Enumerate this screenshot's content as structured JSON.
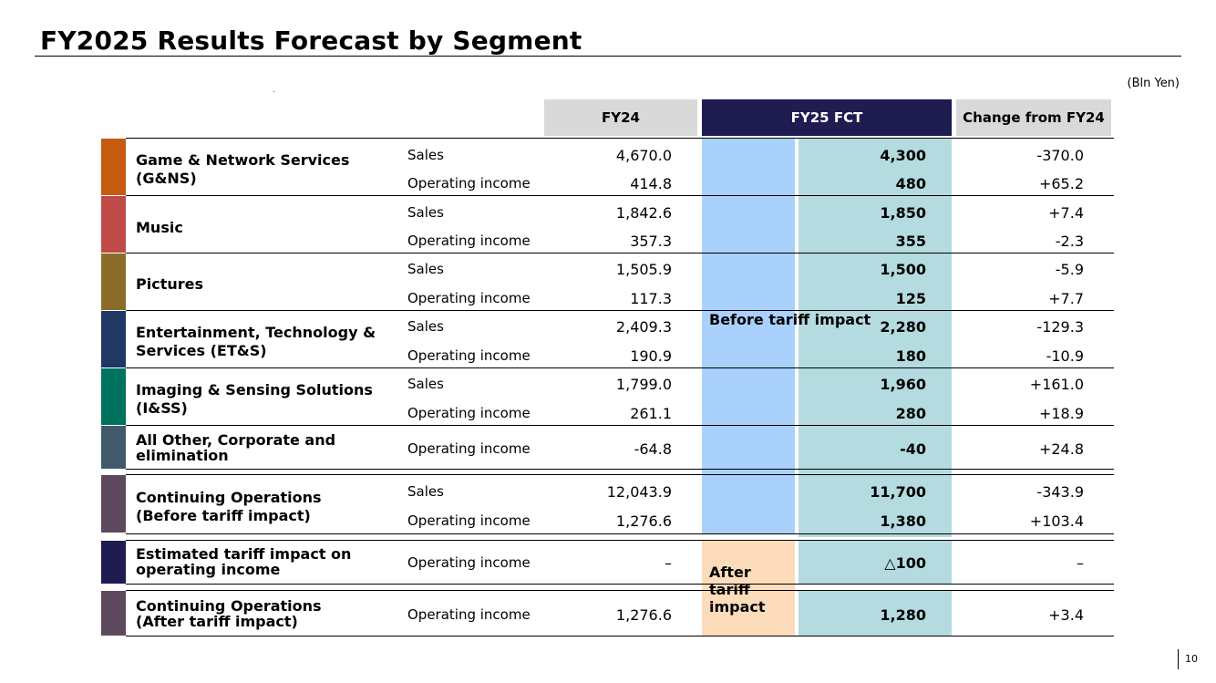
{
  "title": "FY2025 Results Forecast by Segment",
  "unit": "(Bln Yen)",
  "page_number": "10",
  "headers": {
    "fy24": "FY24",
    "fy25": "FY25 FCT",
    "change": "Change from FY24"
  },
  "mid_labels": {
    "before": "Before tariff impact",
    "after": "After tariff impact"
  },
  "colors": {
    "gns": "#c55a11",
    "music": "#be4b48",
    "pictures": "#8b6c2a",
    "ets": "#1f3864",
    "iss": "#00735f",
    "other": "#415a6b",
    "cont": "#5e4a5e",
    "tariff": "#1e1c50",
    "before_fill": "#a9d1fb",
    "after_fill": "#fddcbc",
    "fct_fill": "#b4dbdf"
  },
  "segments": {
    "gns": {
      "name": "Game & Network Services (G&NS)",
      "rows": [
        {
          "label": "Sales",
          "fy24": "4,670.0",
          "fy25": "4,300",
          "chg": "-370.0"
        },
        {
          "label": "Operating income",
          "fy24": "414.8",
          "fy25": "480",
          "chg": "+65.2"
        }
      ]
    },
    "music": {
      "name": "Music",
      "rows": [
        {
          "label": "Sales",
          "fy24": "1,842.6",
          "fy25": "1,850",
          "chg": "+7.4"
        },
        {
          "label": "Operating income",
          "fy24": "357.3",
          "fy25": "355",
          "chg": "-2.3"
        }
      ]
    },
    "pictures": {
      "name": "Pictures",
      "rows": [
        {
          "label": "Sales",
          "fy24": "1,505.9",
          "fy25": "1,500",
          "chg": "-5.9"
        },
        {
          "label": "Operating income",
          "fy24": "117.3",
          "fy25": "125",
          "chg": "+7.7"
        }
      ]
    },
    "ets": {
      "name": "Entertainment, Technology & Services (ET&S)",
      "rows": [
        {
          "label": "Sales",
          "fy24": "2,409.3",
          "fy25": "2,280",
          "chg": "-129.3"
        },
        {
          "label": "Operating income",
          "fy24": "190.9",
          "fy25": "180",
          "chg": "-10.9"
        }
      ]
    },
    "iss": {
      "name": "Imaging & Sensing Solutions (I&SS)",
      "rows": [
        {
          "label": "Sales",
          "fy24": "1,799.0",
          "fy25": "1,960",
          "chg": "+161.0"
        },
        {
          "label": "Operating income",
          "fy24": "261.1",
          "fy25": "280",
          "chg": "+18.9"
        }
      ]
    },
    "other": {
      "name": "All Other, Corporate and elimination",
      "rows": [
        {
          "label": "Operating income",
          "fy24": "-64.8",
          "fy25": "-40",
          "chg": "+24.8"
        }
      ]
    },
    "cont_before": {
      "name": "Continuing Operations (Before tariff impact)",
      "rows": [
        {
          "label": "Sales",
          "fy24": "12,043.9",
          "fy25": "11,700",
          "chg": "-343.9"
        },
        {
          "label": "Operating income",
          "fy24": "1,276.6",
          "fy25": "1,380",
          "chg": "+103.4"
        }
      ]
    },
    "tariff": {
      "name": "Estimated tariff impact on operating income",
      "rows": [
        {
          "label": "Operating income",
          "fy24": "–",
          "fy25": "△100",
          "chg": "–"
        }
      ]
    },
    "cont_after": {
      "name": "Continuing Operations (After tariff impact)",
      "rows": [
        {
          "label": "Operating income",
          "fy24": "1,276.6",
          "fy25": "1,280",
          "chg": "+3.4"
        }
      ]
    }
  }
}
